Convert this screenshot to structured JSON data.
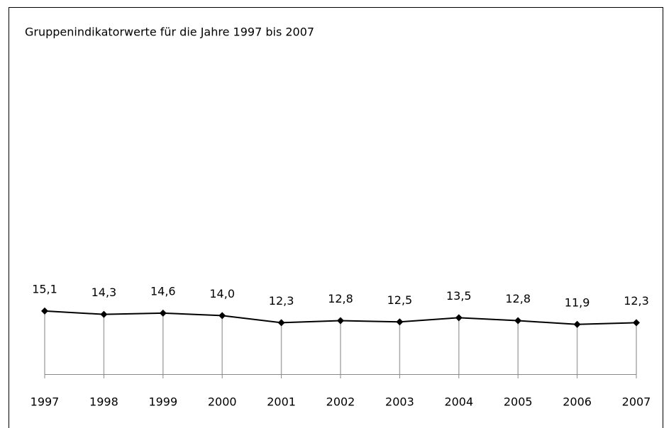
{
  "chart_data": {
    "type": "line",
    "title": "Gruppenindikatorwerte für die Jahre 1997 bis 2007",
    "categories": [
      "1997",
      "1998",
      "1999",
      "2000",
      "2001",
      "2002",
      "2003",
      "2004",
      "2005",
      "2006",
      "2007"
    ],
    "values": [
      15.1,
      14.3,
      14.6,
      14.0,
      12.3,
      12.8,
      12.5,
      13.5,
      12.8,
      11.9,
      12.3
    ],
    "value_labels": [
      "15,1",
      "14,3",
      "14,6",
      "14,0",
      "12,3",
      "12,8",
      "12,5",
      "13,5",
      "12,8",
      "11,9",
      "12,3"
    ],
    "color": "#000000",
    "drop_lines": true
  }
}
